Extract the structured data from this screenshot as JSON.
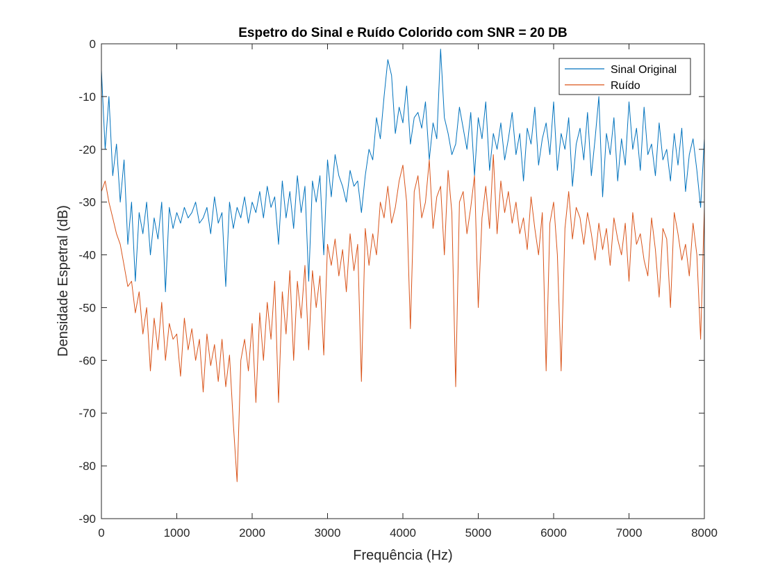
{
  "chart_data": {
    "type": "line",
    "title": "Espetro do Sinal e Ruído Colorido com SNR = 20 DB",
    "xlabel": "Frequência (Hz)",
    "ylabel": "Densidade Espetral (dB)",
    "xlim": [
      0,
      8000
    ],
    "ylim": [
      -90,
      0
    ],
    "xticks": [
      0,
      1000,
      2000,
      3000,
      4000,
      5000,
      6000,
      7000,
      8000
    ],
    "yticks": [
      0,
      -10,
      -20,
      -30,
      -40,
      -50,
      -60,
      -70,
      -80,
      -90
    ],
    "grid": false,
    "legend_position": "top-right",
    "series": [
      {
        "name": "Sinal Original",
        "color": "#0072BD",
        "x": [
          0,
          50,
          100,
          150,
          200,
          250,
          300,
          350,
          400,
          450,
          500,
          550,
          600,
          650,
          700,
          750,
          800,
          850,
          900,
          950,
          1000,
          1050,
          1100,
          1150,
          1200,
          1250,
          1300,
          1350,
          1400,
          1450,
          1500,
          1550,
          1600,
          1650,
          1700,
          1750,
          1800,
          1850,
          1900,
          1950,
          2000,
          2050,
          2100,
          2150,
          2200,
          2250,
          2300,
          2350,
          2400,
          2450,
          2500,
          2550,
          2600,
          2650,
          2700,
          2750,
          2800,
          2850,
          2900,
          2950,
          3000,
          3050,
          3100,
          3150,
          3200,
          3250,
          3300,
          3350,
          3400,
          3450,
          3500,
          3550,
          3600,
          3650,
          3700,
          3750,
          3800,
          3850,
          3900,
          3950,
          4000,
          4050,
          4100,
          4150,
          4200,
          4250,
          4300,
          4350,
          4400,
          4450,
          4500,
          4550,
          4600,
          4650,
          4700,
          4750,
          4800,
          4850,
          4900,
          4950,
          5000,
          5050,
          5100,
          5150,
          5200,
          5250,
          5300,
          5350,
          5400,
          5450,
          5500,
          5550,
          5600,
          5650,
          5700,
          5750,
          5800,
          5850,
          5900,
          5950,
          6000,
          6050,
          6100,
          6150,
          6200,
          6250,
          6300,
          6350,
          6400,
          6450,
          6500,
          6550,
          6600,
          6650,
          6700,
          6750,
          6800,
          6850,
          6900,
          6950,
          7000,
          7050,
          7100,
          7150,
          7200,
          7250,
          7300,
          7350,
          7400,
          7450,
          7500,
          7550,
          7600,
          7650,
          7700,
          7750,
          7800,
          7850,
          7900,
          7950,
          8000
        ],
        "y": [
          -5,
          -20,
          -10,
          -25,
          -19,
          -30,
          -22,
          -38,
          -30,
          -45,
          -32,
          -36,
          -30,
          -40,
          -33,
          -37,
          -30,
          -47,
          -31,
          -35,
          -32,
          -34,
          -31,
          -33,
          -32,
          -30,
          -34,
          -33,
          -31,
          -36,
          -29,
          -34,
          -32,
          -46,
          -30,
          -35,
          -31,
          -33,
          -29,
          -34,
          -30,
          -32,
          -28,
          -33,
          -27,
          -31,
          -29,
          -38,
          -26,
          -33,
          -28,
          -35,
          -25,
          -32,
          -27,
          -45,
          -26,
          -30,
          -25,
          -40,
          -22,
          -29,
          -21,
          -25,
          -27,
          -30,
          -24,
          -27,
          -26,
          -32,
          -25,
          -20,
          -22,
          -14,
          -18,
          -10,
          -3,
          -6,
          -17,
          -12,
          -15,
          -8,
          -19,
          -14,
          -13,
          -16,
          -11,
          -22,
          -15,
          -18,
          -1,
          -14,
          -17,
          -21,
          -19,
          -12,
          -16,
          -20,
          -13,
          -25,
          -14,
          -18,
          -11,
          -24,
          -17,
          -20,
          -15,
          -22,
          -18,
          -13,
          -21,
          -17,
          -26,
          -16,
          -19,
          -12,
          -23,
          -18,
          -15,
          -21,
          -11,
          -24,
          -17,
          -20,
          -14,
          -27,
          -19,
          -16,
          -22,
          -13,
          -25,
          -18,
          -10,
          -29,
          -17,
          -21,
          -14,
          -26,
          -18,
          -23,
          -11,
          -20,
          -16,
          -24,
          -12,
          -21,
          -19,
          -25,
          -15,
          -22,
          -20,
          -26,
          -17,
          -23,
          -16,
          -28,
          -21,
          -18,
          -24,
          -31,
          -18
        ]
      },
      {
        "name": "Ruído",
        "color": "#D95319",
        "x": [
          0,
          50,
          100,
          150,
          200,
          250,
          300,
          350,
          400,
          450,
          500,
          550,
          600,
          650,
          700,
          750,
          800,
          850,
          900,
          950,
          1000,
          1050,
          1100,
          1150,
          1200,
          1250,
          1300,
          1350,
          1400,
          1450,
          1500,
          1550,
          1600,
          1650,
          1700,
          1750,
          1800,
          1850,
          1900,
          1950,
          2000,
          2050,
          2100,
          2150,
          2200,
          2250,
          2300,
          2350,
          2400,
          2450,
          2500,
          2550,
          2600,
          2650,
          2700,
          2750,
          2800,
          2850,
          2900,
          2950,
          3000,
          3050,
          3100,
          3150,
          3200,
          3250,
          3300,
          3350,
          3400,
          3450,
          3500,
          3550,
          3600,
          3650,
          3700,
          3750,
          3800,
          3850,
          3900,
          3950,
          4000,
          4050,
          4100,
          4150,
          4200,
          4250,
          4300,
          4350,
          4400,
          4450,
          4500,
          4550,
          4600,
          4650,
          4700,
          4750,
          4800,
          4850,
          4900,
          4950,
          5000,
          5050,
          5100,
          5150,
          5200,
          5250,
          5300,
          5350,
          5400,
          5450,
          5500,
          5550,
          5600,
          5650,
          5700,
          5750,
          5800,
          5850,
          5900,
          5950,
          6000,
          6050,
          6100,
          6150,
          6200,
          6250,
          6300,
          6350,
          6400,
          6450,
          6500,
          6550,
          6600,
          6650,
          6700,
          6750,
          6800,
          6850,
          6900,
          6950,
          7000,
          7050,
          7100,
          7150,
          7200,
          7250,
          7300,
          7350,
          7400,
          7450,
          7500,
          7550,
          7600,
          7650,
          7700,
          7750,
          7800,
          7850,
          7900,
          7950,
          8000
        ],
        "y": [
          -28,
          -26,
          -30,
          -33,
          -36,
          -38,
          -42,
          -46,
          -45,
          -51,
          -47,
          -55,
          -50,
          -62,
          -52,
          -58,
          -49,
          -60,
          -53,
          -56,
          -55,
          -63,
          -52,
          -58,
          -54,
          -60,
          -56,
          -66,
          -55,
          -61,
          -57,
          -64,
          -56,
          -65,
          -59,
          -72,
          -83,
          -60,
          -56,
          -62,
          -53,
          -68,
          -51,
          -60,
          -49,
          -56,
          -45,
          -68,
          -47,
          -55,
          -43,
          -60,
          -45,
          -52,
          -42,
          -58,
          -43,
          -50,
          -44,
          -59,
          -38,
          -42,
          -37,
          -44,
          -39,
          -47,
          -36,
          -43,
          -38,
          -64,
          -35,
          -42,
          -36,
          -40,
          -30,
          -33,
          -27,
          -34,
          -31,
          -26,
          -23,
          -30,
          -54,
          -28,
          -25,
          -33,
          -30,
          -22,
          -35,
          -29,
          -27,
          -40,
          -24,
          -32,
          -65,
          -30,
          -28,
          -36,
          -31,
          -25,
          -50,
          -33,
          -27,
          -35,
          -21,
          -36,
          -26,
          -32,
          -28,
          -34,
          -30,
          -36,
          -33,
          -39,
          -29,
          -35,
          -40,
          -32,
          -62,
          -34,
          -30,
          -40,
          -62,
          -35,
          -28,
          -37,
          -31,
          -33,
          -38,
          -32,
          -36,
          -41,
          -34,
          -39,
          -35,
          -42,
          -33,
          -37,
          -40,
          -34,
          -45,
          -32,
          -38,
          -36,
          -41,
          -44,
          -33,
          -39,
          -48,
          -35,
          -37,
          -50,
          -32,
          -36,
          -41,
          -38,
          -44,
          -34,
          -40,
          -56,
          -31
        ]
      }
    ]
  }
}
